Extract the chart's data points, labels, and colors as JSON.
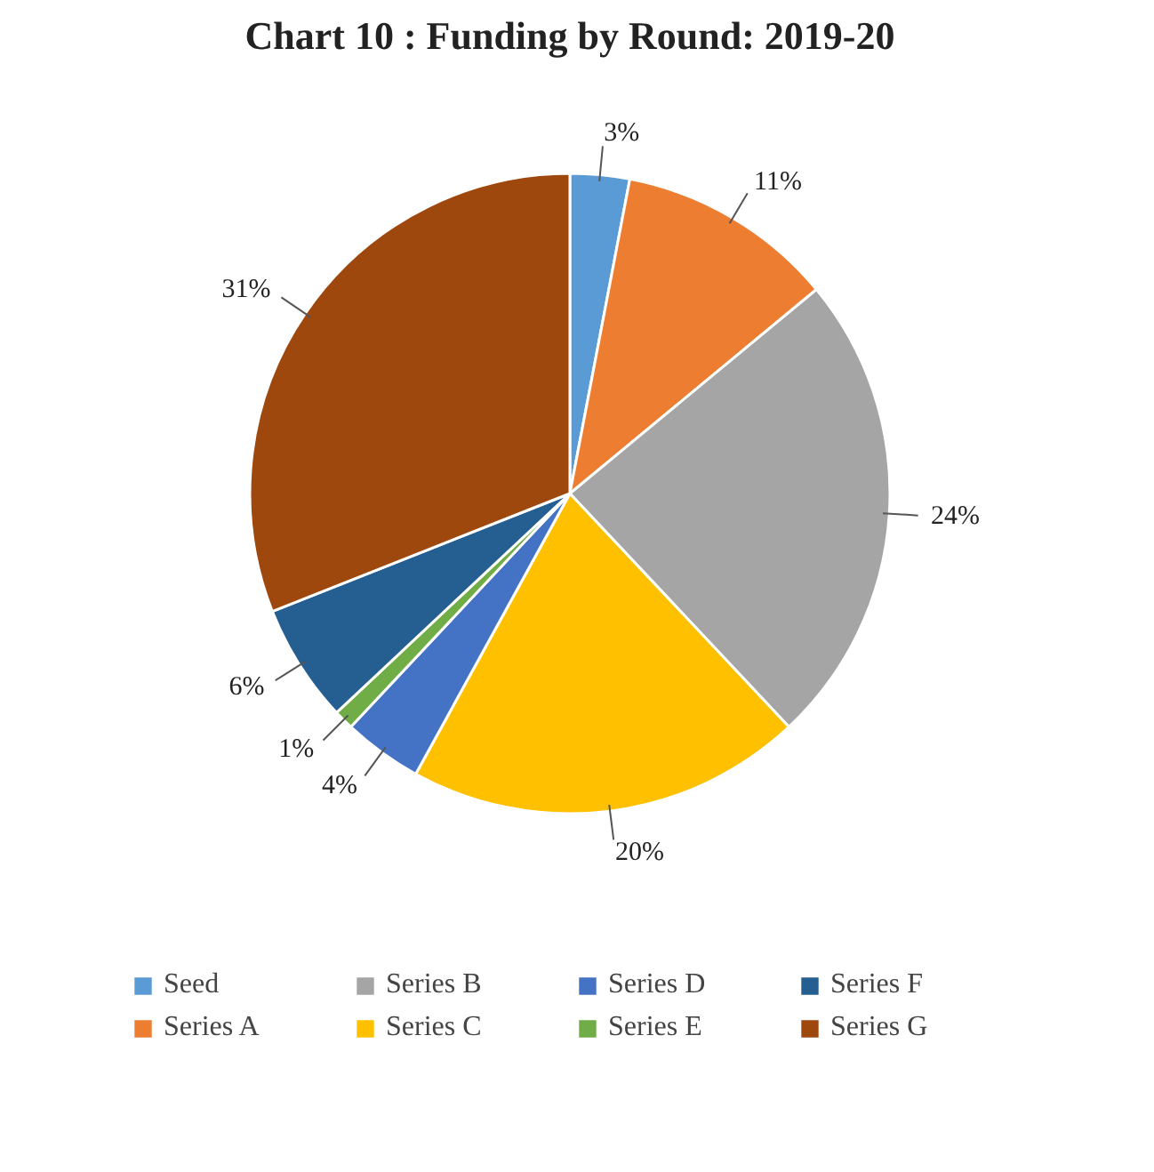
{
  "chart_data": {
    "type": "pie",
    "title": "Chart 10 : Funding by Round: 2019-20",
    "categories": [
      "Seed",
      "Series A",
      "Series B",
      "Series C",
      "Series D",
      "Series E",
      "Series F",
      "Series G"
    ],
    "values": [
      3,
      11,
      24,
      20,
      4,
      1,
      6,
      31
    ],
    "value_labels": [
      "3%",
      "11%",
      "24%",
      "20%",
      "4%",
      "1%",
      "6%",
      "31%"
    ],
    "colors": [
      "#5b9bd5",
      "#ed7d31",
      "#a5a5a5",
      "#ffc000",
      "#4472c4",
      "#70ad47",
      "#255e91",
      "#9e480e"
    ],
    "legend": "bottom"
  }
}
